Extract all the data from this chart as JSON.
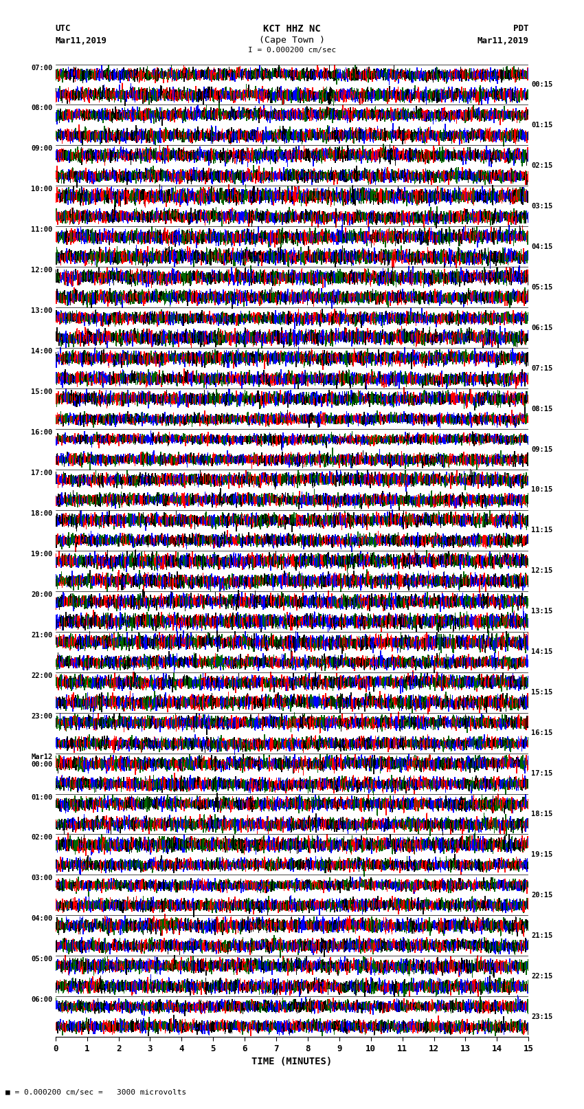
{
  "title_line1": "KCT HHZ NC",
  "title_line2": "(Cape Town )",
  "title_scale": "I = 0.000200 cm/sec",
  "left_label_top": "UTC",
  "left_label_date": "Mar11,2019",
  "right_label_top": "PDT",
  "right_label_date": "Mar11,2019",
  "bottom_label": "TIME (MINUTES)",
  "scale_label": "= 0.000200 cm/sec =   3000 microvolts",
  "left_times": [
    "07:00",
    "08:00",
    "09:00",
    "10:00",
    "11:00",
    "12:00",
    "13:00",
    "14:00",
    "15:00",
    "16:00",
    "17:00",
    "18:00",
    "19:00",
    "20:00",
    "21:00",
    "22:00",
    "23:00",
    "Mar12\n00:00",
    "01:00",
    "02:00",
    "03:00",
    "04:00",
    "05:00",
    "06:00"
  ],
  "right_times": [
    "00:15",
    "01:15",
    "02:15",
    "03:15",
    "04:15",
    "05:15",
    "06:15",
    "07:15",
    "08:15",
    "09:15",
    "10:15",
    "11:15",
    "12:15",
    "13:15",
    "14:15",
    "15:15",
    "16:15",
    "17:15",
    "18:15",
    "19:15",
    "20:15",
    "21:15",
    "22:15",
    "23:15"
  ],
  "n_traces": 24,
  "minutes_per_trace": 15,
  "samples_per_minute": 400,
  "colors": [
    "#ff0000",
    "#0000ff",
    "#006600",
    "#000000"
  ],
  "background_color": "white",
  "xlim": [
    0,
    15
  ],
  "xlabel_ticks": [
    0,
    1,
    2,
    3,
    4,
    5,
    6,
    7,
    8,
    9,
    10,
    11,
    12,
    13,
    14,
    15
  ],
  "fig_width": 8.5,
  "fig_height": 16.13,
  "dpi": 100
}
